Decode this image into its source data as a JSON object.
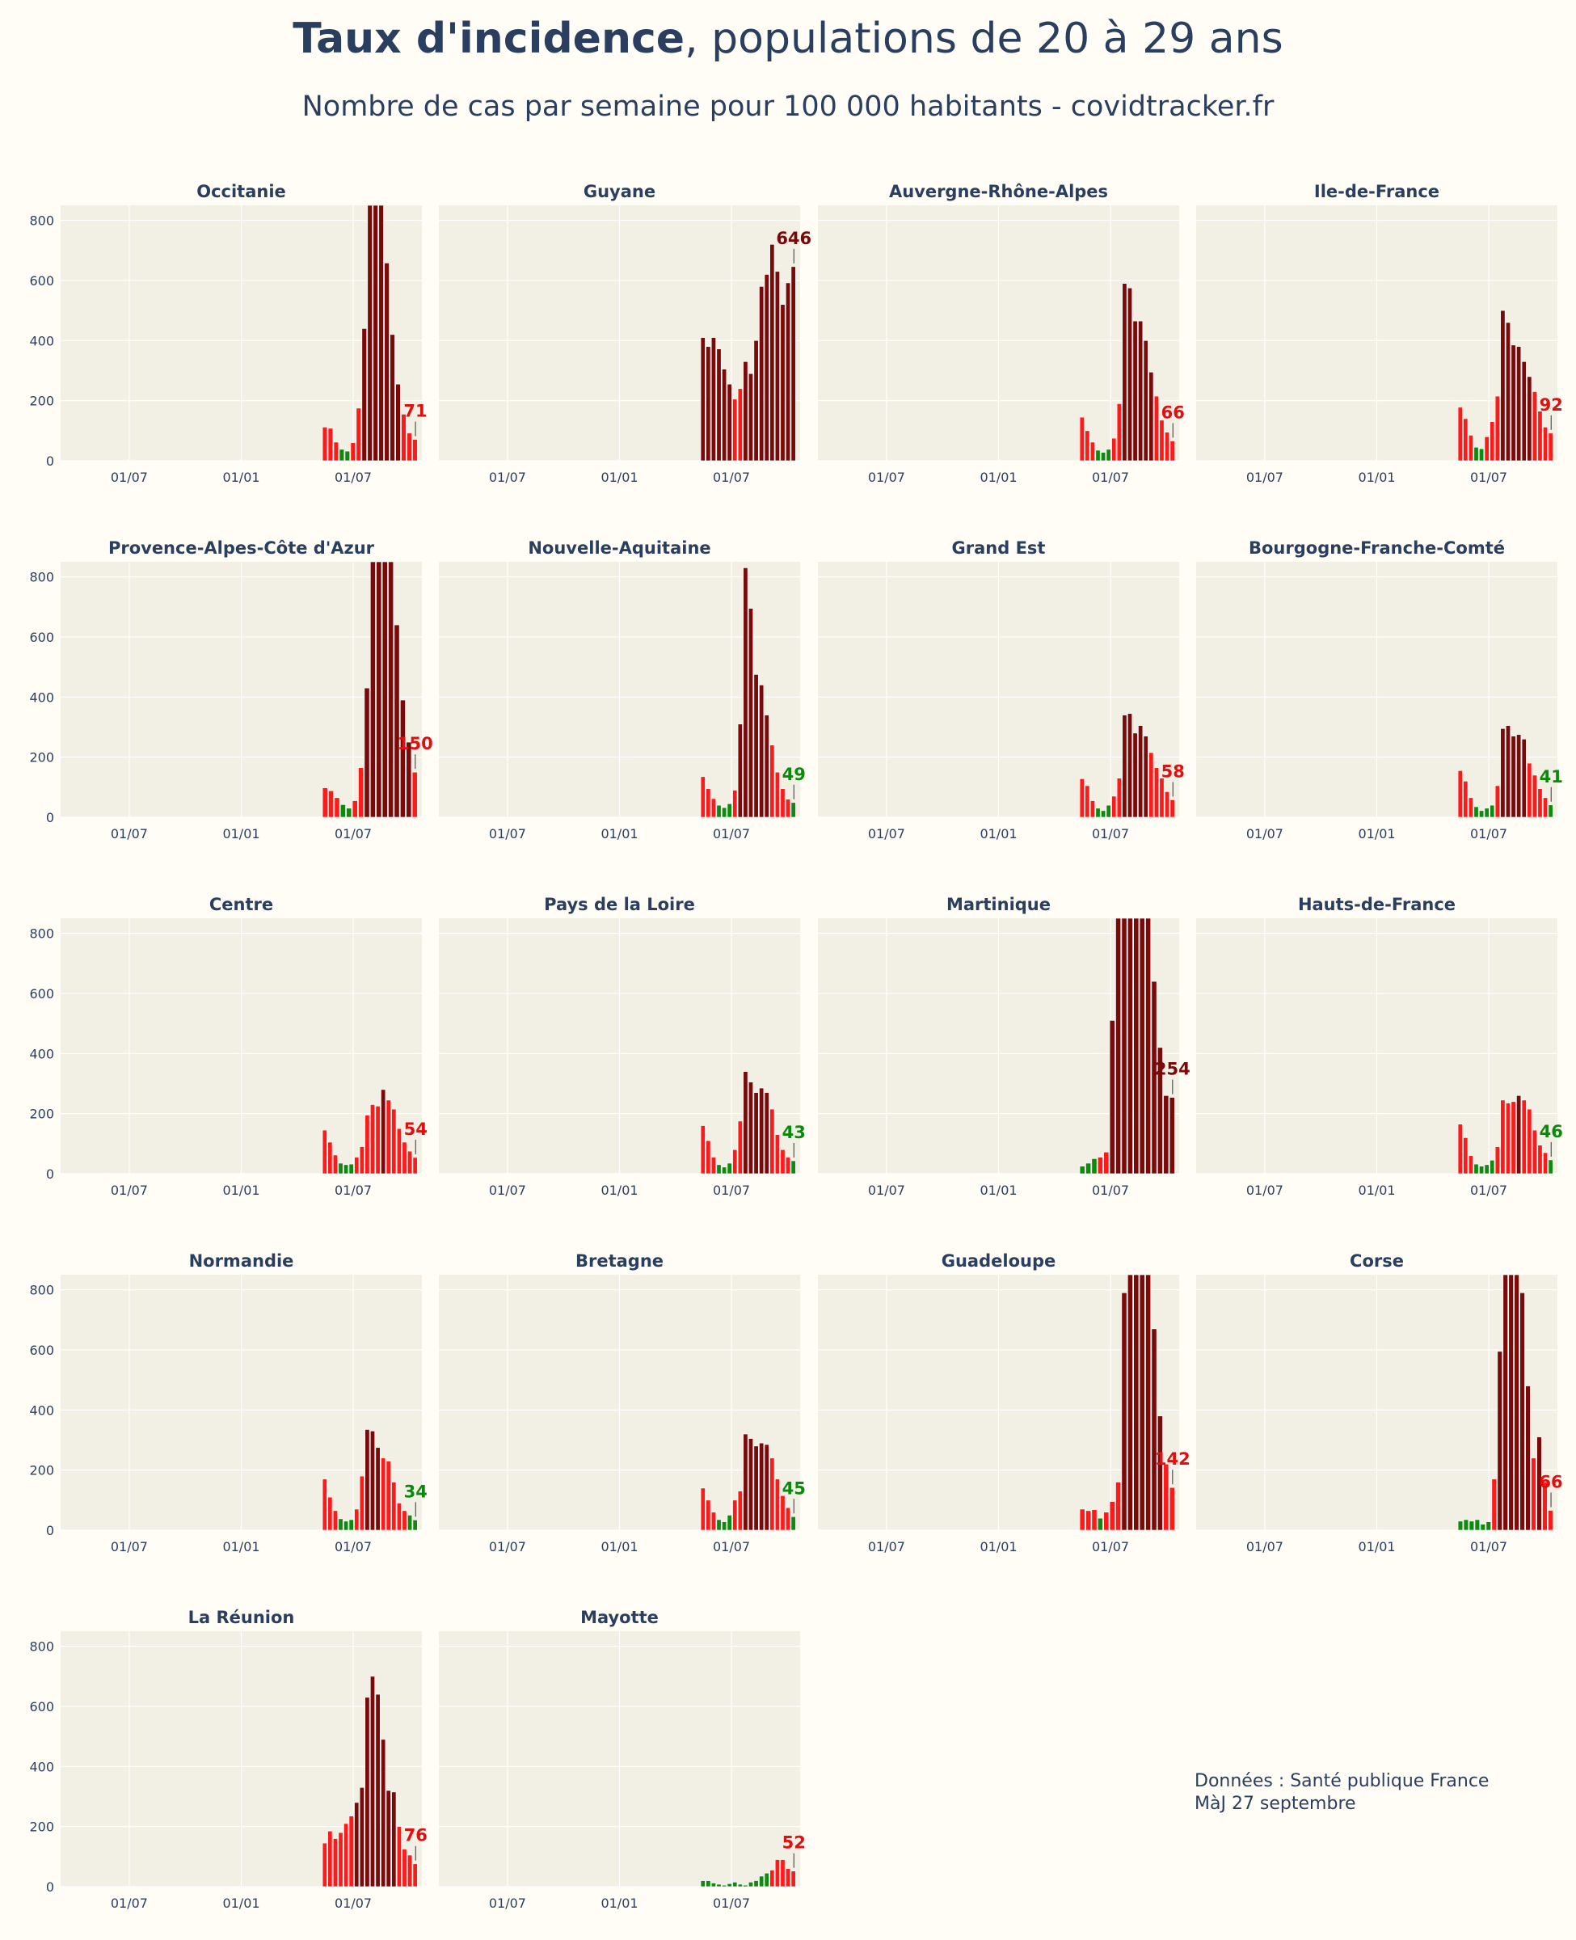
{
  "title": {
    "bold": "Taux d'incidence",
    "rest": ", populations de 20 à 29 ans"
  },
  "subtitle": "Nombre de cas par semaine pour 100 000 habitants - covidtracker.fr",
  "footer": {
    "line1": "Données : Santé publique France",
    "line2": "MàJ 27 septembre"
  },
  "colors": {
    "plot_bg": "#f2efe4",
    "grid": "#ffffff",
    "green": "#0f8a0f",
    "red": "#ff1a1a",
    "dark": "#7a0a0a",
    "label_green": "#0a8a0a",
    "label_red": "#e01010",
    "label_dark": "#7a0a0a"
  },
  "chart_data": [
    {
      "type": "bar",
      "title": "Occitanie",
      "x_ticks": [
        "01/07",
        "01/01",
        "01/07"
      ],
      "y_ticks": [
        0,
        200,
        400,
        600,
        800
      ],
      "ylim": [
        0,
        850
      ],
      "last_label": "71",
      "last_color": "red",
      "values": [
        112,
        108,
        62,
        38,
        32,
        60,
        175,
        440,
        850,
        850,
        850,
        658,
        420,
        255,
        155,
        92,
        71
      ]
    },
    {
      "type": "bar",
      "title": "Guyane",
      "x_ticks": [
        "01/07",
        "01/01",
        "01/07"
      ],
      "y_ticks": [
        0,
        200,
        400,
        600,
        800
      ],
      "ylim": [
        0,
        850
      ],
      "last_label": "646",
      "last_color": "dark",
      "values": [
        410,
        380,
        410,
        372,
        305,
        255,
        205,
        240,
        330,
        290,
        400,
        580,
        620,
        720,
        630,
        520,
        592,
        646
      ]
    },
    {
      "type": "bar",
      "title": "Auvergne-Rhône-Alpes",
      "x_ticks": [
        "01/07",
        "01/01",
        "01/07"
      ],
      "y_ticks": [
        0,
        200,
        400,
        600,
        800
      ],
      "ylim": [
        0,
        850
      ],
      "last_label": "66",
      "last_color": "red",
      "values": [
        145,
        100,
        62,
        35,
        28,
        38,
        75,
        190,
        590,
        575,
        465,
        465,
        400,
        295,
        215,
        135,
        95,
        66
      ]
    },
    {
      "type": "bar",
      "title": "Ile-de-France",
      "x_ticks": [
        "01/07",
        "01/01",
        "01/07"
      ],
      "y_ticks": [
        0,
        200,
        400,
        600,
        800
      ],
      "ylim": [
        0,
        850
      ],
      "last_label": "92",
      "last_color": "red",
      "values": [
        178,
        140,
        85,
        45,
        40,
        80,
        130,
        215,
        500,
        460,
        385,
        380,
        330,
        280,
        230,
        165,
        112,
        92
      ]
    },
    {
      "type": "bar",
      "title": "Provence-Alpes-Côte d'Azur",
      "x_ticks": [
        "01/07",
        "01/01",
        "01/07"
      ],
      "y_ticks": [
        0,
        200,
        400,
        600,
        800
      ],
      "ylim": [
        0,
        850
      ],
      "last_label": "150",
      "last_color": "red",
      "values": [
        98,
        88,
        65,
        42,
        30,
        55,
        165,
        430,
        850,
        850,
        850,
        850,
        640,
        390,
        250,
        150
      ]
    },
    {
      "type": "bar",
      "title": "Nouvelle-Aquitaine",
      "x_ticks": [
        "01/07",
        "01/01",
        "01/07"
      ],
      "y_ticks": [
        0,
        200,
        400,
        600,
        800
      ],
      "ylim": [
        0,
        850
      ],
      "last_label": "49",
      "last_color": "green",
      "values": [
        135,
        95,
        62,
        40,
        32,
        45,
        90,
        310,
        830,
        695,
        475,
        440,
        340,
        240,
        150,
        95,
        60,
        49
      ]
    },
    {
      "type": "bar",
      "title": "Grand Est",
      "x_ticks": [
        "01/07",
        "01/01",
        "01/07"
      ],
      "y_ticks": [
        0,
        200,
        400,
        600,
        800
      ],
      "ylim": [
        0,
        850
      ],
      "last_label": "58",
      "last_color": "red",
      "values": [
        128,
        105,
        55,
        30,
        22,
        40,
        70,
        130,
        340,
        345,
        280,
        305,
        270,
        215,
        165,
        130,
        85,
        58
      ]
    },
    {
      "type": "bar",
      "title": "Bourgogne-Franche-Comté",
      "x_ticks": [
        "01/07",
        "01/01",
        "01/07"
      ],
      "y_ticks": [
        0,
        200,
        400,
        600,
        800
      ],
      "ylim": [
        0,
        850
      ],
      "last_label": "41",
      "last_color": "green",
      "values": [
        155,
        120,
        65,
        35,
        22,
        30,
        40,
        105,
        295,
        305,
        270,
        275,
        260,
        180,
        140,
        95,
        65,
        41
      ]
    },
    {
      "type": "bar",
      "title": "Centre",
      "x_ticks": [
        "01/07",
        "01/01",
        "01/07"
      ],
      "y_ticks": [
        0,
        200,
        400,
        600,
        800
      ],
      "ylim": [
        0,
        850
      ],
      "last_label": "54",
      "last_color": "red",
      "values": [
        145,
        105,
        62,
        35,
        30,
        32,
        55,
        90,
        195,
        230,
        225,
        280,
        245,
        215,
        150,
        105,
        75,
        54
      ]
    },
    {
      "type": "bar",
      "title": "Pays de la Loire",
      "x_ticks": [
        "01/07",
        "01/01",
        "01/07"
      ],
      "y_ticks": [
        0,
        200,
        400,
        600,
        800
      ],
      "ylim": [
        0,
        850
      ],
      "last_label": "43",
      "last_color": "green",
      "values": [
        160,
        110,
        55,
        30,
        22,
        35,
        80,
        175,
        340,
        305,
        270,
        285,
        270,
        215,
        130,
        80,
        55,
        43
      ]
    },
    {
      "type": "bar",
      "title": "Martinique",
      "x_ticks": [
        "01/07",
        "01/01",
        "01/07"
      ],
      "y_ticks": [
        0,
        200,
        400,
        600,
        800
      ],
      "ylim": [
        0,
        850
      ],
      "last_label": "254",
      "last_color": "dark",
      "values": [
        25,
        35,
        50,
        55,
        72,
        510,
        850,
        850,
        850,
        850,
        850,
        850,
        640,
        420,
        260,
        254
      ]
    },
    {
      "type": "bar",
      "title": "Hauts-de-France",
      "x_ticks": [
        "01/07",
        "01/01",
        "01/07"
      ],
      "y_ticks": [
        0,
        200,
        400,
        600,
        800
      ],
      "ylim": [
        0,
        850
      ],
      "last_label": "46",
      "last_color": "green",
      "values": [
        165,
        120,
        60,
        32,
        25,
        30,
        45,
        90,
        245,
        235,
        240,
        260,
        245,
        215,
        145,
        95,
        70,
        46
      ]
    },
    {
      "type": "bar",
      "title": "Normandie",
      "x_ticks": [
        "01/07",
        "01/01",
        "01/07"
      ],
      "y_ticks": [
        0,
        200,
        400,
        600,
        800
      ],
      "ylim": [
        0,
        850
      ],
      "last_label": "34",
      "last_color": "green",
      "values": [
        170,
        110,
        65,
        38,
        30,
        35,
        70,
        180,
        335,
        330,
        275,
        240,
        230,
        160,
        90,
        65,
        50,
        34
      ]
    },
    {
      "type": "bar",
      "title": "Bretagne",
      "x_ticks": [
        "01/07",
        "01/01",
        "01/07"
      ],
      "y_ticks": [
        0,
        200,
        400,
        600,
        800
      ],
      "ylim": [
        0,
        850
      ],
      "last_label": "45",
      "last_color": "green",
      "values": [
        140,
        100,
        60,
        35,
        28,
        50,
        100,
        130,
        320,
        305,
        280,
        290,
        285,
        240,
        170,
        115,
        75,
        45
      ]
    },
    {
      "type": "bar",
      "title": "Guadeloupe",
      "x_ticks": [
        "01/07",
        "01/01",
        "01/07"
      ],
      "y_ticks": [
        0,
        200,
        400,
        600,
        800
      ],
      "ylim": [
        0,
        850
      ],
      "last_label": "142",
      "last_color": "red",
      "values": [
        70,
        65,
        68,
        40,
        60,
        95,
        160,
        790,
        850,
        850,
        850,
        850,
        670,
        380,
        220,
        142
      ]
    },
    {
      "type": "bar",
      "title": "Corse",
      "x_ticks": [
        "01/07",
        "01/01",
        "01/07"
      ],
      "y_ticks": [
        0,
        200,
        400,
        600,
        800
      ],
      "ylim": [
        0,
        850
      ],
      "last_label": "66",
      "last_color": "red",
      "values": [
        30,
        35,
        30,
        35,
        20,
        28,
        170,
        595,
        850,
        850,
        850,
        790,
        480,
        240,
        310,
        160,
        66
      ]
    },
    {
      "type": "bar",
      "title": "La Réunion",
      "x_ticks": [
        "01/07",
        "01/01",
        "01/07"
      ],
      "y_ticks": [
        0,
        200,
        400,
        600,
        800
      ],
      "ylim": [
        0,
        850
      ],
      "last_label": "76",
      "last_color": "red",
      "values": [
        145,
        185,
        160,
        180,
        210,
        235,
        280,
        330,
        630,
        700,
        640,
        490,
        320,
        315,
        200,
        125,
        105,
        76
      ]
    },
    {
      "type": "bar",
      "title": "Mayotte",
      "x_ticks": [
        "01/07",
        "01/01",
        "01/07"
      ],
      "y_ticks": [
        0,
        200,
        400,
        600,
        800
      ],
      "ylim": [
        0,
        850
      ],
      "last_label": "52",
      "last_color": "red",
      "values": [
        20,
        20,
        12,
        8,
        5,
        10,
        15,
        8,
        5,
        15,
        20,
        35,
        45,
        55,
        90,
        90,
        60,
        52
      ]
    }
  ]
}
